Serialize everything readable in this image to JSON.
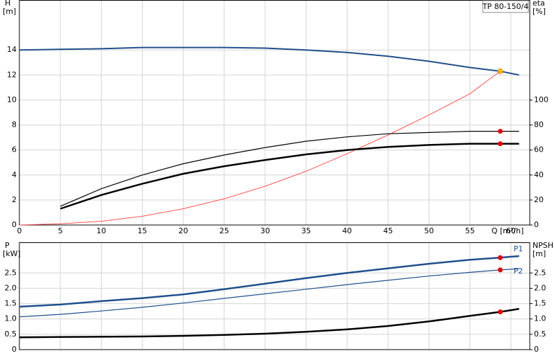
{
  "chart_data": [
    {
      "type": "line",
      "model": "TP 80-150/4",
      "ylabel": [
        "H",
        "[m]"
      ],
      "y2label": [
        "eta",
        "[%]"
      ],
      "xlabel": "Q [m³/h]",
      "x": [
        0,
        5,
        10,
        15,
        20,
        25,
        30,
        35,
        40,
        45,
        50,
        55,
        58.7,
        61
      ],
      "xlim": [
        0,
        62.3
      ],
      "xticks": [
        0,
        5,
        10,
        15,
        20,
        25,
        30,
        35,
        40,
        45,
        50,
        55,
        60
      ],
      "ylim": [
        0,
        18
      ],
      "yticks": [
        0,
        2,
        4,
        6,
        8,
        10,
        12,
        14
      ],
      "y2lim": [
        0,
        180
      ],
      "y2ticks": [
        0,
        20,
        40,
        60,
        80,
        100
      ],
      "grid": true,
      "duty_index": 12,
      "series": [
        {
          "color": "#1f4e8c",
          "width": 2,
          "marker_color": "#f5d000",
          "values": [
            14.0,
            14.05,
            14.1,
            14.2,
            14.2,
            14.2,
            14.15,
            14.0,
            13.8,
            13.5,
            13.1,
            12.6,
            12.3,
            12.0
          ]
        },
        {
          "color": "#ff5050",
          "width": 1,
          "axis": "y2",
          "values": [
            0,
            1,
            3,
            7,
            13,
            21,
            31,
            43,
            57,
            72,
            88,
            105,
            123,
            null
          ]
        },
        {
          "color": "#000000",
          "width": 1.2,
          "axis": "y2",
          "marker_color": "#e00000",
          "values": [
            null,
            15,
            29,
            40,
            49,
            56,
            62,
            67,
            70.5,
            73,
            74,
            75,
            75,
            75
          ]
        },
        {
          "color": "#000000",
          "width": 2.5,
          "axis": "y2",
          "marker_color": "#e00000",
          "values": [
            null,
            13,
            24,
            33,
            41,
            47,
            52,
            56.5,
            60,
            62.5,
            64,
            65,
            65,
            65
          ]
        }
      ]
    },
    {
      "type": "line",
      "ylabel": [
        "P",
        "[kW]"
      ],
      "y2label": [
        "NPSH",
        "[m]"
      ],
      "x": [
        0,
        5,
        10,
        15,
        20,
        25,
        30,
        35,
        40,
        45,
        50,
        55,
        58.7,
        61
      ],
      "xlim": [
        0,
        62.3
      ],
      "xticks": [
        0,
        5,
        10,
        15,
        20,
        25,
        30,
        35,
        40,
        45,
        50,
        55,
        60
      ],
      "ylim": [
        0,
        3.5
      ],
      "yticks": [
        0,
        0.5,
        {
          "value": 1,
          "label": "1.0"
        },
        1.5,
        {
          "value": 2,
          "label": "2.0"
        },
        2.5
      ],
      "y2lim": [
        0,
        3.5
      ],
      "y2ticks": [
        0,
        0.5,
        {
          "value": 1,
          "label": "1.0"
        },
        1.5,
        {
          "value": 2,
          "label": "2.0"
        },
        2.5
      ],
      "grid": true,
      "duty_index": 12,
      "series": [
        {
          "name": "P1",
          "color": "#1f4e8c",
          "width": 2.5,
          "marker_color": "#e00000",
          "values": [
            1.4,
            1.47,
            1.58,
            1.68,
            1.8,
            1.97,
            2.15,
            2.33,
            2.5,
            2.65,
            2.8,
            2.93,
            3.0,
            3.05
          ]
        },
        {
          "name": "P2",
          "color": "#1f4e8c",
          "width": 1.2,
          "marker_color": "#e00000",
          "values": [
            1.07,
            1.15,
            1.26,
            1.38,
            1.52,
            1.67,
            1.82,
            1.97,
            2.12,
            2.26,
            2.4,
            2.52,
            2.6,
            2.64
          ]
        },
        {
          "color": "#000000",
          "width": 2.5,
          "axis": "y2",
          "marker_color": "#e00000",
          "values": [
            0.4,
            0.41,
            0.42,
            0.43,
            0.45,
            0.48,
            0.52,
            0.58,
            0.66,
            0.77,
            0.92,
            1.1,
            1.23,
            1.33
          ]
        }
      ]
    }
  ]
}
